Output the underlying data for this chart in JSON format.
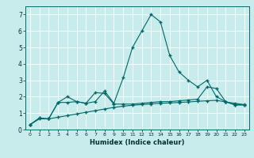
{
  "xlabel": "Humidex (Indice chaleur)",
  "x_ticks": [
    0,
    1,
    2,
    3,
    4,
    5,
    6,
    7,
    8,
    9,
    10,
    11,
    12,
    13,
    14,
    15,
    16,
    17,
    18,
    19,
    20,
    21,
    22,
    23
  ],
  "ylim": [
    0,
    7.5
  ],
  "xlim": [
    -0.5,
    23.5
  ],
  "background_color": "#c8ecec",
  "grid_color": "#b0d8d8",
  "line_color": "#006868",
  "line1": [
    0.3,
    0.7,
    0.65,
    1.65,
    1.65,
    1.7,
    1.6,
    1.7,
    2.35,
    1.6,
    3.15,
    5.0,
    6.0,
    7.0,
    6.55,
    4.5,
    3.5,
    3.0,
    2.6,
    3.0,
    2.0,
    1.7,
    1.5,
    1.5
  ],
  "line2": [
    0.3,
    0.7,
    0.65,
    1.65,
    2.0,
    1.7,
    1.6,
    2.25,
    2.2,
    1.55,
    1.55,
    1.55,
    1.6,
    1.65,
    1.7,
    1.7,
    1.75,
    1.8,
    1.85,
    2.6,
    2.5,
    1.7,
    1.5,
    1.5
  ],
  "line3": [
    0.3,
    0.65,
    0.65,
    0.75,
    0.85,
    0.95,
    1.05,
    1.15,
    1.25,
    1.35,
    1.42,
    1.48,
    1.52,
    1.56,
    1.6,
    1.62,
    1.65,
    1.68,
    1.72,
    1.75,
    1.78,
    1.68,
    1.6,
    1.52
  ]
}
